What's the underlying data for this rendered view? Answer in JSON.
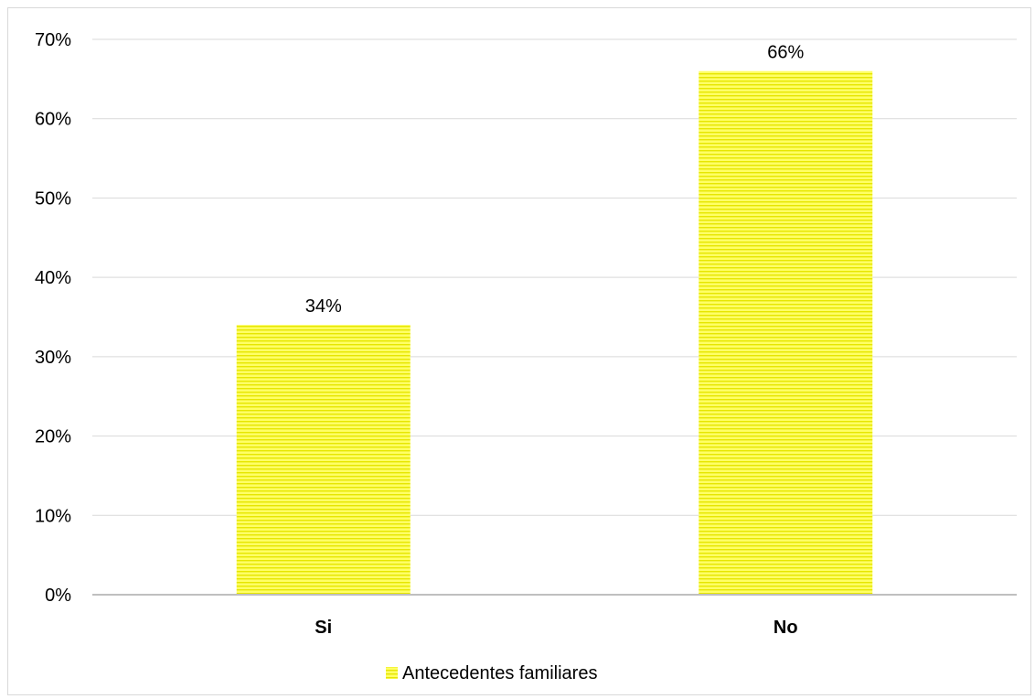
{
  "chart_data": {
    "type": "bar",
    "categories": [
      "Si",
      "No"
    ],
    "series": [
      {
        "name": "Antecedentes familiares",
        "values": [
          0.34,
          0.66
        ],
        "data_labels": [
          "34%",
          "66%"
        ],
        "color": "#ffff66",
        "stripe_color": "#e6e600",
        "pattern": "horizontal-stripes"
      }
    ],
    "y_ticks": [
      0,
      0.1,
      0.2,
      0.3,
      0.4,
      0.5,
      0.6,
      0.7
    ],
    "y_tick_labels": [
      "0%",
      "10%",
      "20%",
      "30%",
      "40%",
      "50%",
      "60%",
      "70%"
    ],
    "ylim": [
      0,
      0.7
    ],
    "gridlines": true,
    "legend_position": "bottom",
    "gridline_color": "#d9d9d9",
    "axis_color": "#bfbfbf"
  }
}
